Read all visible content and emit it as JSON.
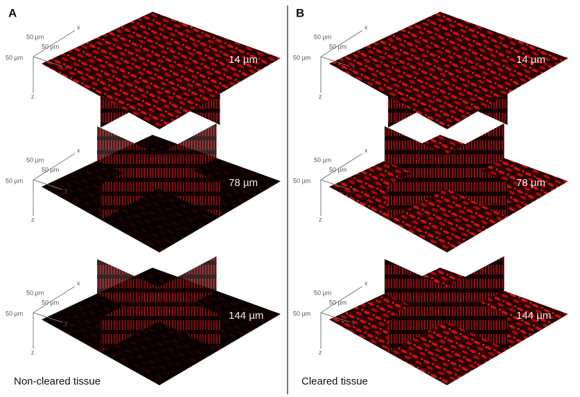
{
  "panels": [
    {
      "label": "A",
      "caption": "Non-cleared tissue",
      "stacks": [
        {
          "depth": "14 µm",
          "axes": {
            "scale_x": "50 µm",
            "scale_y": "50 µm",
            "scale_z": "50 µm",
            "x": "x",
            "y": "y",
            "z": "z"
          }
        },
        {
          "depth": "78 µm",
          "axes": {
            "scale_x": "50 µm",
            "scale_y": "50 µm",
            "scale_z": "50 µm",
            "x": "x",
            "y": "y",
            "z": "z"
          }
        },
        {
          "depth": "144 µm",
          "axes": {
            "scale_x": "50 µm",
            "scale_y": "50 µm",
            "scale_z": "50 µm",
            "x": "x",
            "y": "y",
            "z": "z"
          }
        }
      ]
    },
    {
      "label": "B",
      "caption": "Cleared tissue",
      "stacks": [
        {
          "depth": "14 µm",
          "axes": {
            "scale_x": "50 µm",
            "scale_y": "50 µm",
            "scale_z": "50 µm",
            "x": "x",
            "y": "y",
            "z": "z"
          }
        },
        {
          "depth": "78 µm",
          "axes": {
            "scale_x": "50 µm",
            "scale_y": "50 µm",
            "scale_z": "50 µm",
            "x": "x",
            "y": "y",
            "z": "z"
          }
        },
        {
          "depth": "144 µm",
          "axes": {
            "scale_x": "50 µm",
            "scale_y": "50 µm",
            "scale_z": "50 µm",
            "x": "x",
            "y": "y",
            "z": "z"
          }
        }
      ]
    }
  ]
}
